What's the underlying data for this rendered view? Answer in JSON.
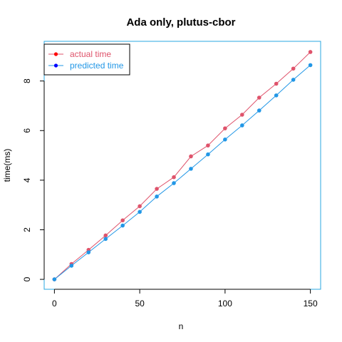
{
  "chart_data": {
    "type": "line",
    "title": "Ada only, plutus-cbor",
    "xlabel": "n",
    "ylabel": "time(ms)",
    "xlim": [
      -6,
      156
    ],
    "ylim": [
      -0.4,
      9.6
    ],
    "x_ticks": [
      0,
      50,
      100,
      150
    ],
    "x_tick_labels": [
      "0",
      "50",
      "100",
      "150"
    ],
    "y_ticks": [
      0,
      2,
      4,
      6,
      8
    ],
    "y_tick_labels": [
      "0",
      "2",
      "4",
      "6",
      "8"
    ],
    "grid": false,
    "legend_position": "top-left",
    "x": [
      0,
      10,
      20,
      30,
      40,
      50,
      60,
      70,
      80,
      90,
      100,
      110,
      120,
      130,
      140,
      150
    ],
    "series": [
      {
        "name": "actual time",
        "color": "#DF536B",
        "values": [
          0.0,
          0.62,
          1.19,
          1.77,
          2.38,
          2.95,
          3.65,
          4.12,
          4.96,
          5.4,
          6.09,
          6.64,
          7.33,
          7.89,
          8.5,
          9.17
        ]
      },
      {
        "name": "predicted time",
        "color": "#2297E6",
        "values": [
          0.0,
          0.55,
          1.09,
          1.63,
          2.17,
          2.72,
          3.34,
          3.88,
          4.46,
          5.04,
          5.64,
          6.21,
          6.81,
          7.42,
          8.05,
          8.64
        ]
      }
    ],
    "legend_marker_color": "#0000FF",
    "legend_marker_color_first": "#FF0000",
    "frame_color": "#28A7E0"
  }
}
